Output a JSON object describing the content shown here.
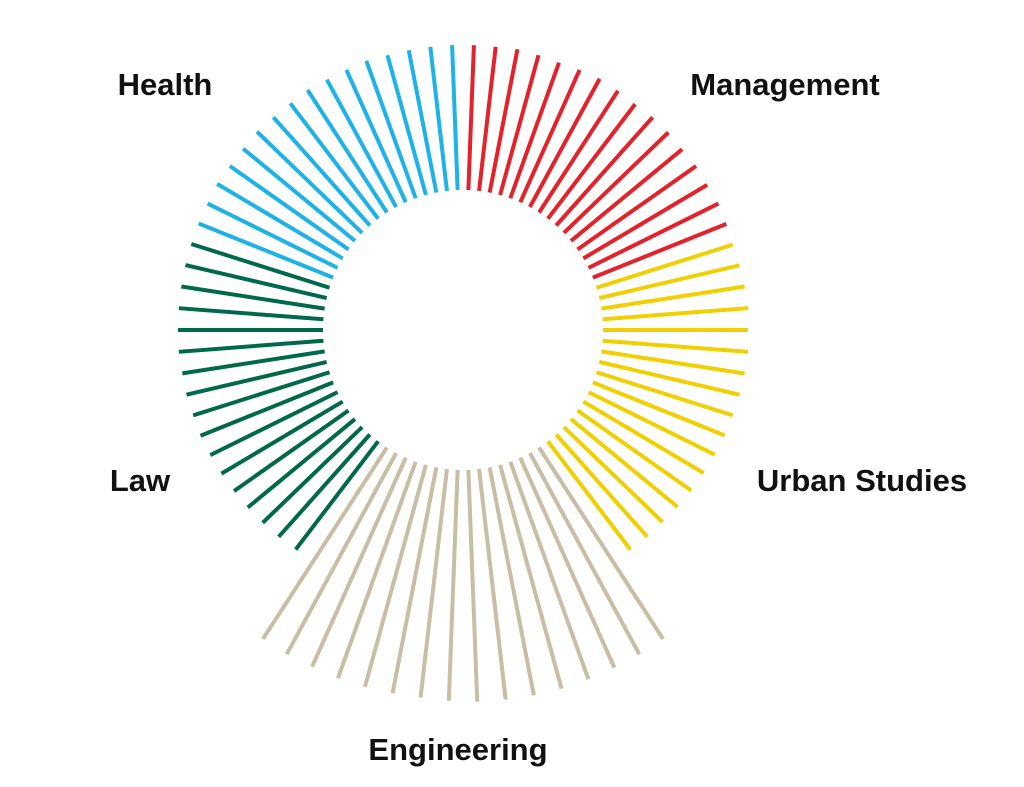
{
  "chart_data": {
    "type": "radial-bar",
    "series": [
      {
        "name": "Management",
        "color": "#e3222b",
        "values": [
          145,
          145,
          146,
          145,
          144,
          145,
          146,
          145,
          144,
          145,
          145,
          144,
          145,
          144,
          145,
          144
        ]
      },
      {
        "name": "Urban Studies",
        "color": "#f0d000",
        "values": [
          143,
          144,
          145,
          146,
          145,
          146,
          145,
          144,
          143,
          142,
          141,
          140,
          139,
          138,
          137,
          137,
          136
        ]
      },
      {
        "name": "Engineering",
        "color": "#c8bda5",
        "values": [
          228,
          229,
          230,
          231,
          232,
          232,
          232,
          232,
          231,
          230,
          230,
          230,
          230,
          229,
          229,
          228
        ]
      },
      {
        "name": "Law",
        "color": "#00694a",
        "values": [
          136,
          137,
          138,
          139,
          140,
          141,
          142,
          143,
          143,
          144,
          144,
          145,
          145,
          145,
          145,
          145,
          145
        ]
      },
      {
        "name": "Health",
        "color": "#1fb2e6",
        "values": [
          145,
          145,
          146,
          145,
          145,
          146,
          145,
          145,
          146,
          145,
          145,
          146,
          145,
          145,
          145,
          145
        ]
      }
    ]
  }
}
